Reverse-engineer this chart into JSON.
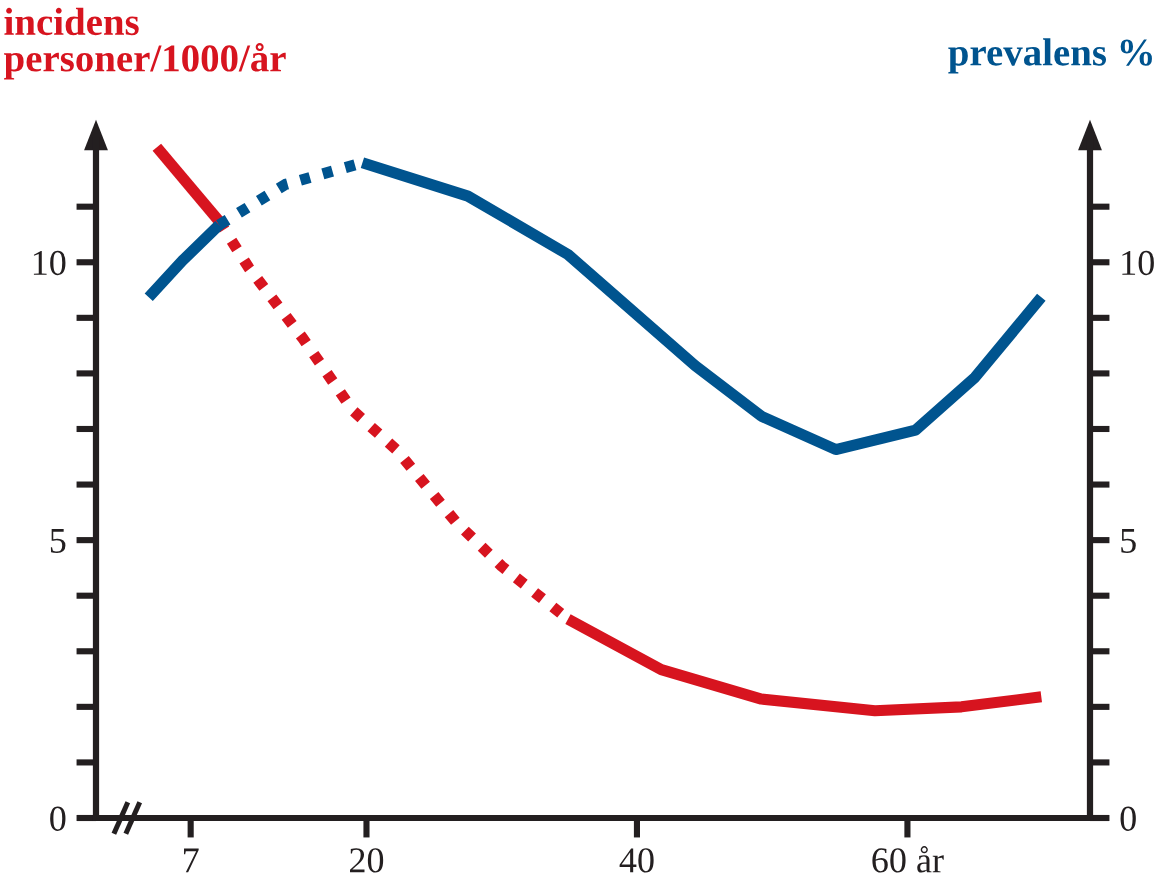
{
  "chart_data": {
    "type": "line",
    "ylabel": "incidens\npersoner/1000/år",
    "y2label": "prevalens %",
    "xlim": [
      0,
      73.5
    ],
    "xticks": [
      7,
      20,
      40,
      {
        "value": 60,
        "label": "60 år"
      }
    ],
    "ylim": [
      0,
      12.2
    ],
    "yticks": [
      0,
      {
        "value": 1,
        "label": null
      },
      {
        "value": 2,
        "label": null
      },
      {
        "value": 3,
        "label": null
      },
      {
        "value": 4,
        "label": null
      },
      5,
      {
        "value": 6,
        "label": null
      },
      {
        "value": 7,
        "label": null
      },
      {
        "value": 8,
        "label": null
      },
      {
        "value": 9,
        "label": null
      },
      10,
      {
        "value": 11,
        "label": null
      }
    ],
    "y2lim": [
      0,
      12.2
    ],
    "y2ticks": [
      0,
      {
        "value": 1,
        "label": null
      },
      {
        "value": 2,
        "label": null
      },
      {
        "value": 3,
        "label": null
      },
      {
        "value": 4,
        "label": null
      },
      5,
      {
        "value": 6,
        "label": null
      },
      {
        "value": 7,
        "label": null
      },
      {
        "value": 8,
        "label": null
      },
      {
        "value": 9,
        "label": null
      },
      10,
      {
        "value": 11,
        "label": null
      }
    ],
    "grid": false,
    "legend": false,
    "marker": "none",
    "series": [
      {
        "color": "#d7141f",
        "line_style": "solid",
        "x": [
          4.5,
          9.1
        ],
        "values": [
          12.07,
          10.74
        ]
      },
      {
        "color": "#d7141f",
        "line_style": "dotted",
        "x": [
          9.1,
          11.3,
          15.3,
          19.0,
          22.2,
          26.6,
          30.0,
          34.9
        ],
        "values": [
          10.74,
          9.9,
          8.63,
          7.33,
          6.63,
          5.33,
          4.53,
          3.58
        ]
      },
      {
        "color": "#d7141f",
        "line_style": "solid",
        "x": [
          34.9,
          41.8,
          49.2,
          57.6,
          64.0,
          69.9
        ],
        "values": [
          3.58,
          2.67,
          2.14,
          1.93,
          2.0,
          2.18
        ]
      },
      {
        "color": "#00548f",
        "line_style": "solid",
        "axis": "y2",
        "x": [
          3.9,
          6.4,
          9.1
        ],
        "values": [
          9.37,
          10.03,
          10.67
        ]
      },
      {
        "color": "#00548f",
        "line_style": "dotted",
        "axis": "y2",
        "x": [
          9.1,
          14.0,
          19.7
        ],
        "values": [
          10.67,
          11.4,
          11.79
        ]
      },
      {
        "color": "#00548f",
        "line_style": "solid",
        "axis": "y2",
        "x": [
          19.7,
          27.5,
          34.9,
          44.3,
          49.2,
          54.7,
          60.6,
          65.0,
          69.9
        ],
        "values": [
          11.79,
          11.19,
          10.14,
          8.14,
          7.23,
          6.63,
          6.98,
          7.93,
          9.37
        ]
      }
    ]
  }
}
